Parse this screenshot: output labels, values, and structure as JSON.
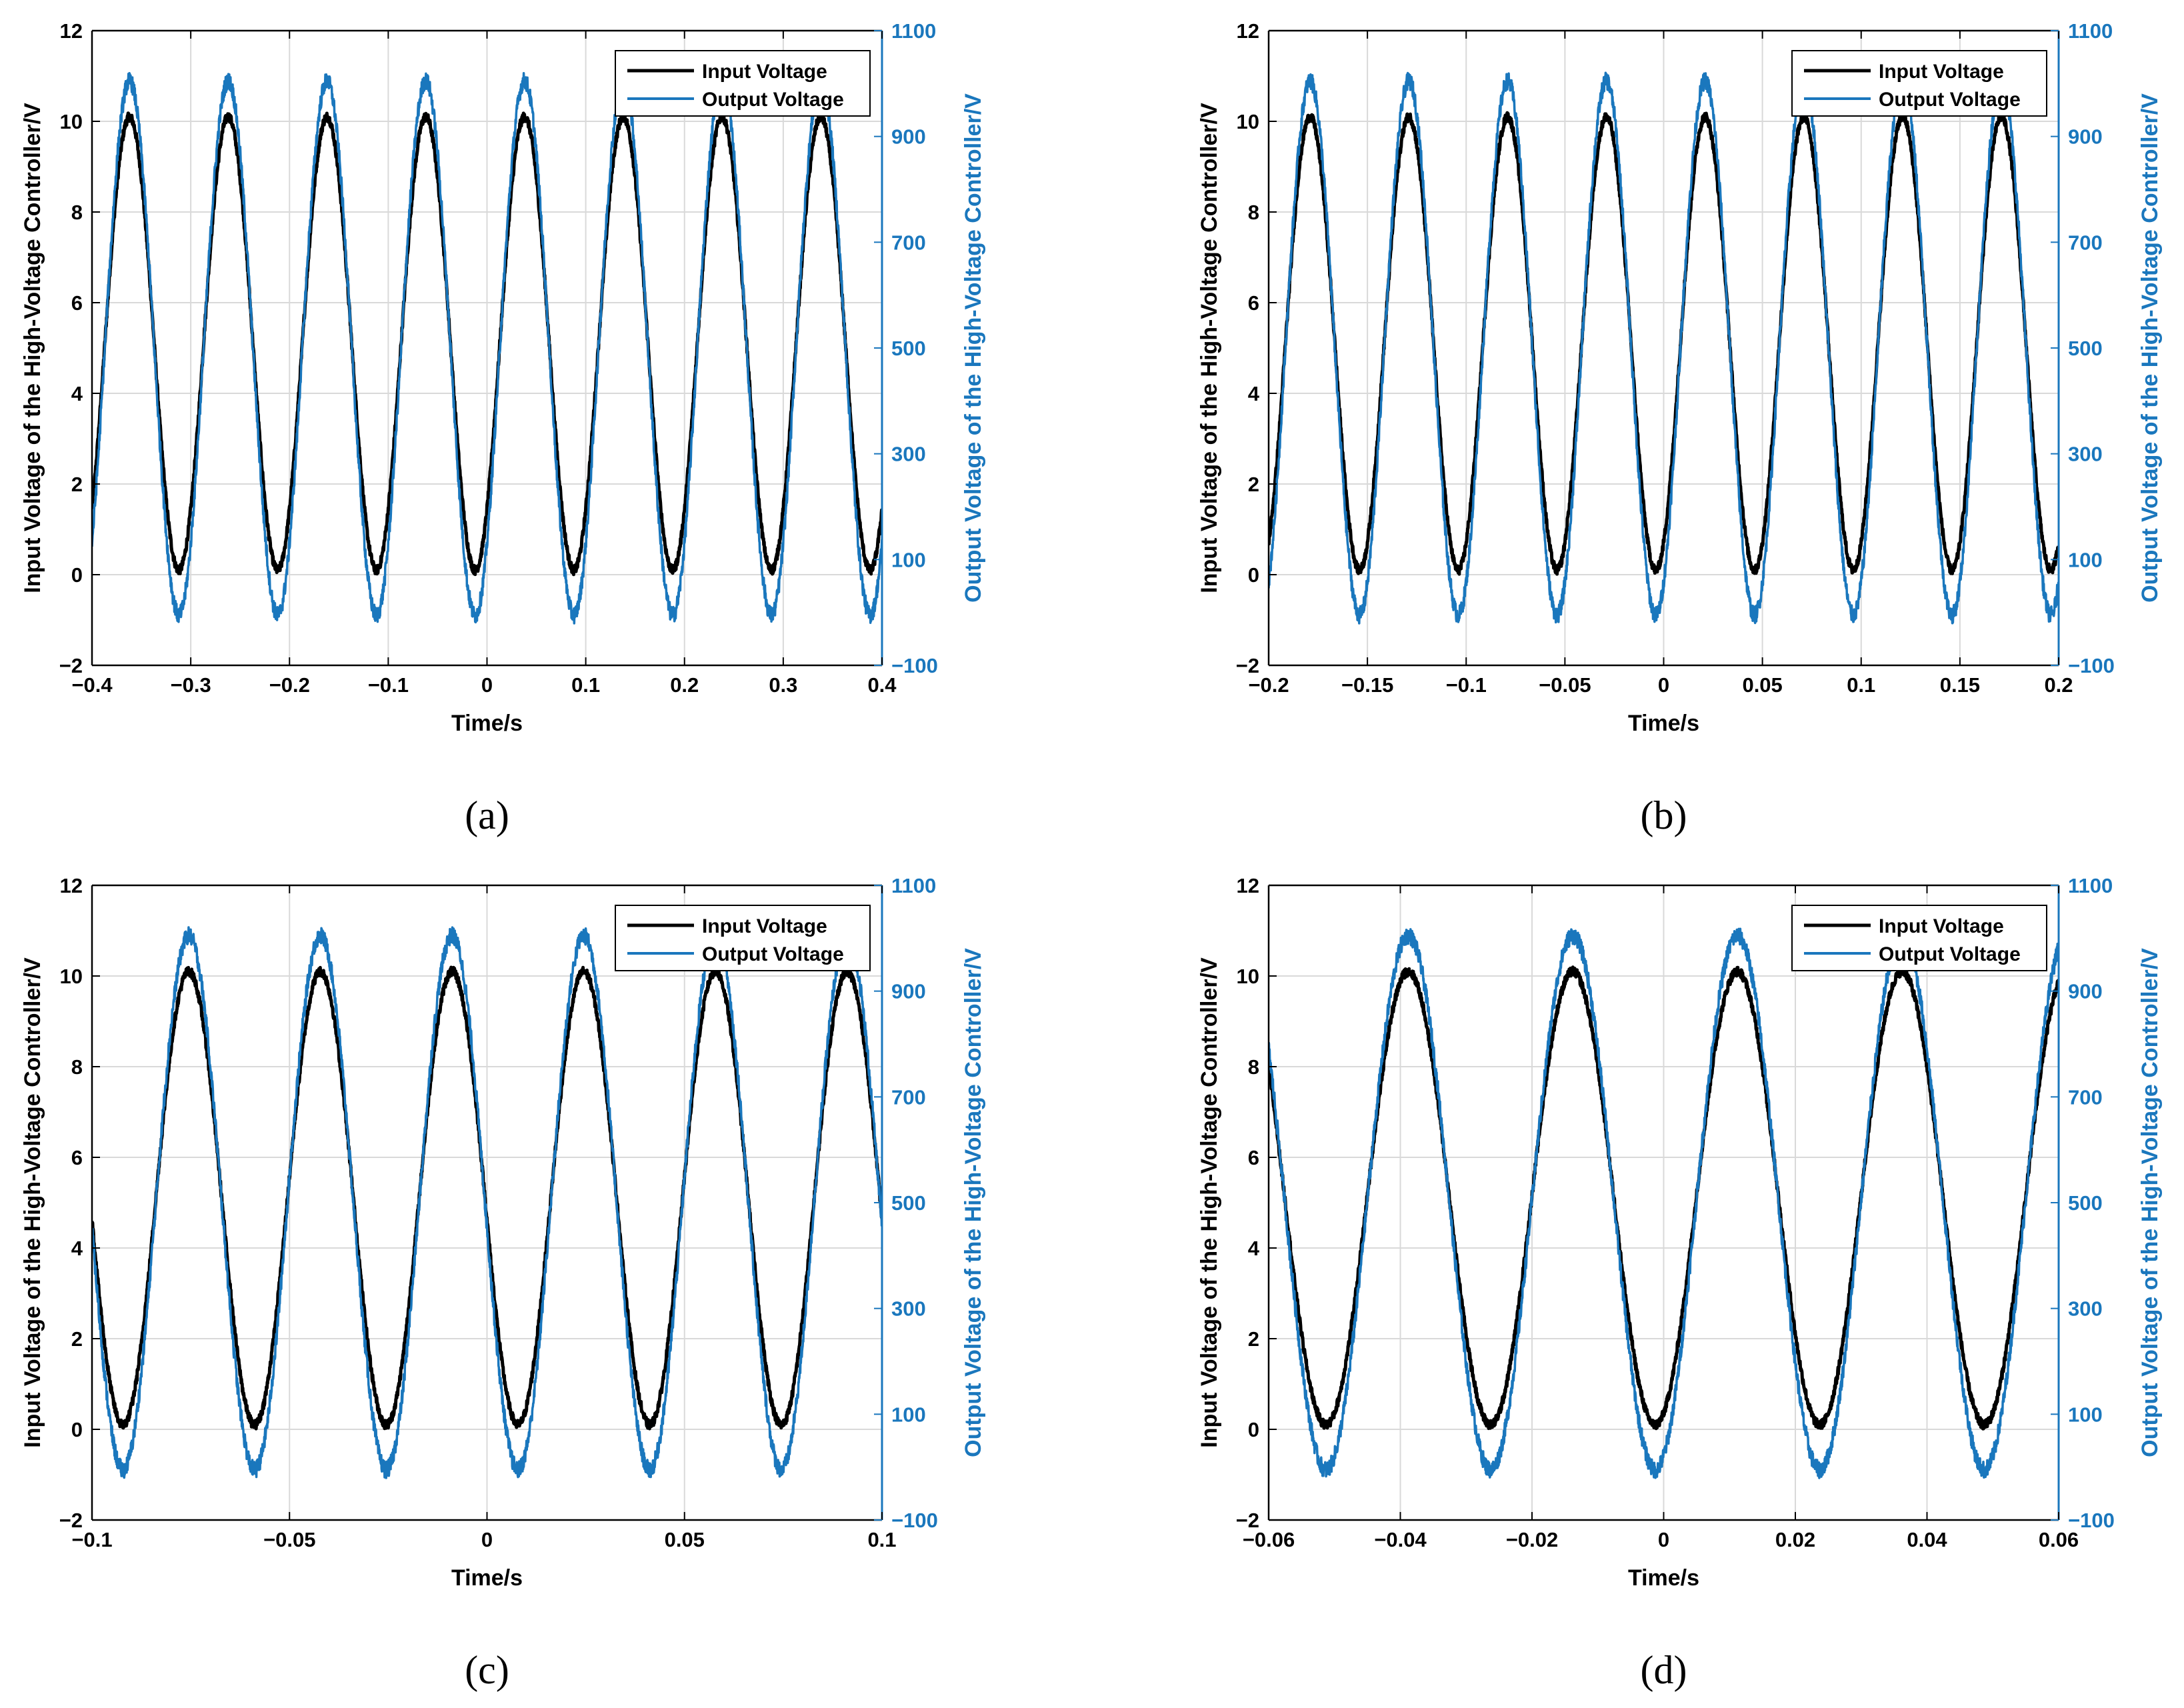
{
  "colors": {
    "input": "#000000",
    "output": "#1a77bd",
    "grid": "#d9d9d9"
  },
  "chart_data": [
    {
      "type": "line",
      "caption": "(a)",
      "xlabel": "Time/s",
      "ylabel": "Input Voltage of the High-Voltage Controller/V",
      "y2label": "Output Voltage of the High-Voltage Controller/V",
      "xlim": [
        -0.4,
        0.4
      ],
      "ylim": [
        -2,
        12
      ],
      "y2lim": [
        -100,
        1100
      ],
      "xticks": [
        -0.4,
        -0.3,
        -0.2,
        -0.1,
        0,
        0.1,
        0.2,
        0.3,
        0.4
      ],
      "xtick_labels": [
        "−0.4",
        "−0.3",
        "−0.2",
        "−0.1",
        "0",
        "0.1",
        "0.2",
        "0.3",
        "0.4"
      ],
      "yticks": [
        -2,
        0,
        2,
        4,
        6,
        8,
        10,
        12
      ],
      "ytick_labels": [
        "−2",
        "0",
        "2",
        "4",
        "6",
        "8",
        "10",
        "12"
      ],
      "y2ticks": [
        -100,
        100,
        300,
        500,
        700,
        900,
        1100
      ],
      "y2tick_labels": [
        "−100",
        "100",
        "300",
        "500",
        "700",
        "900",
        "1100"
      ],
      "grid": true,
      "legend_position": "top-right",
      "series": [
        {
          "name": "Input Voltage",
          "axis": "left",
          "kind": "sine",
          "offset": 5.1,
          "amplitude": 5.0,
          "frequency_hz": 10,
          "first_peak_x": -0.362
        },
        {
          "name": "Output Voltage",
          "axis": "right",
          "kind": "sine",
          "offset": 500,
          "amplitude": 505,
          "frequency_hz": 10,
          "first_peak_x": -0.362
        }
      ]
    },
    {
      "type": "line",
      "caption": "(b)",
      "xlabel": "Time/s",
      "ylabel": "Input Voltage of the High-Voltage Controller/V",
      "y2label": "Output Voltage of the High-Voltage Controller/V",
      "xlim": [
        -0.2,
        0.2
      ],
      "ylim": [
        -2,
        12
      ],
      "y2lim": [
        -100,
        1100
      ],
      "xticks": [
        -0.2,
        -0.15,
        -0.1,
        -0.05,
        0,
        0.05,
        0.1,
        0.15,
        0.2
      ],
      "xtick_labels": [
        "−0.2",
        "−0.15",
        "−0.1",
        "−0.05",
        "0",
        "0.05",
        "0.1",
        "0.15",
        "0.2"
      ],
      "yticks": [
        -2,
        0,
        2,
        4,
        6,
        8,
        10,
        12
      ],
      "ytick_labels": [
        "−2",
        "0",
        "2",
        "4",
        "6",
        "8",
        "10",
        "12"
      ],
      "y2ticks": [
        -100,
        100,
        300,
        500,
        700,
        900,
        1100
      ],
      "y2tick_labels": [
        "−100",
        "100",
        "300",
        "500",
        "700",
        "900",
        "1100"
      ],
      "grid": true,
      "legend_position": "top-right",
      "series": [
        {
          "name": "Input Voltage",
          "axis": "left",
          "kind": "sine",
          "offset": 5.1,
          "amplitude": 5.0,
          "frequency_hz": 20,
          "first_peak_x": -0.179
        },
        {
          "name": "Output Voltage",
          "axis": "right",
          "kind": "sine",
          "offset": 500,
          "amplitude": 505,
          "frequency_hz": 20,
          "first_peak_x": -0.179
        }
      ]
    },
    {
      "type": "line",
      "caption": "(c)",
      "xlabel": "Time/s",
      "ylabel": "Input Voltage of the High-Voltage Controller/V",
      "y2label": "Output Voltage of the High-Voltage Controller/V",
      "xlim": [
        -0.1,
        0.1
      ],
      "ylim": [
        -2,
        12
      ],
      "y2lim": [
        -100,
        1100
      ],
      "xticks": [
        -0.1,
        -0.05,
        0,
        0.05,
        0.1
      ],
      "xtick_labels": [
        "−0.1",
        "−0.05",
        "0",
        "0.05",
        "0.1"
      ],
      "yticks": [
        -2,
        0,
        2,
        4,
        6,
        8,
        10,
        12
      ],
      "ytick_labels": [
        "−2",
        "0",
        "2",
        "4",
        "6",
        "8",
        "10",
        "12"
      ],
      "y2ticks": [
        -100,
        100,
        300,
        500,
        700,
        900,
        1100
      ],
      "y2tick_labels": [
        "−100",
        "100",
        "300",
        "500",
        "700",
        "900",
        "1100"
      ],
      "grid": true,
      "legend_position": "top-right",
      "series": [
        {
          "name": "Input Voltage",
          "axis": "left",
          "kind": "sine",
          "offset": 5.1,
          "amplitude": 5.0,
          "frequency_hz": 30,
          "first_peak_x": -0.0755
        },
        {
          "name": "Output Voltage",
          "axis": "right",
          "kind": "sine",
          "offset": 500,
          "amplitude": 505,
          "frequency_hz": 30,
          "first_peak_x": -0.0755
        }
      ]
    },
    {
      "type": "line",
      "caption": "(d)",
      "xlabel": "Time/s",
      "ylabel": "Input Voltage of the High-Voltage Controller/V",
      "y2label": "Output Voltage of the High-Voltage Controller/V",
      "xlim": [
        -0.06,
        0.06
      ],
      "ylim": [
        -2,
        12
      ],
      "y2lim": [
        -100,
        1100
      ],
      "xticks": [
        -0.06,
        -0.04,
        -0.02,
        0,
        0.02,
        0.04,
        0.06
      ],
      "xtick_labels": [
        "−0.06",
        "−0.04",
        "−0.02",
        "0",
        "0.02",
        "0.04",
        "0.06"
      ],
      "yticks": [
        -2,
        0,
        2,
        4,
        6,
        8,
        10,
        12
      ],
      "ytick_labels": [
        "−2",
        "0",
        "2",
        "4",
        "6",
        "8",
        "10",
        "12"
      ],
      "y2ticks": [
        -100,
        100,
        300,
        500,
        700,
        900,
        1100
      ],
      "y2tick_labels": [
        "−100",
        "100",
        "300",
        "500",
        "700",
        "900",
        "1100"
      ],
      "grid": true,
      "legend_position": "top-right",
      "series": [
        {
          "name": "Input Voltage",
          "axis": "left",
          "kind": "sine",
          "offset": 5.1,
          "amplitude": 5.0,
          "frequency_hz": 40,
          "first_peak_x": -0.0388
        },
        {
          "name": "Output Voltage",
          "axis": "right",
          "kind": "sine",
          "offset": 500,
          "amplitude": 505,
          "frequency_hz": 40,
          "first_peak_x": -0.0388
        }
      ]
    }
  ]
}
